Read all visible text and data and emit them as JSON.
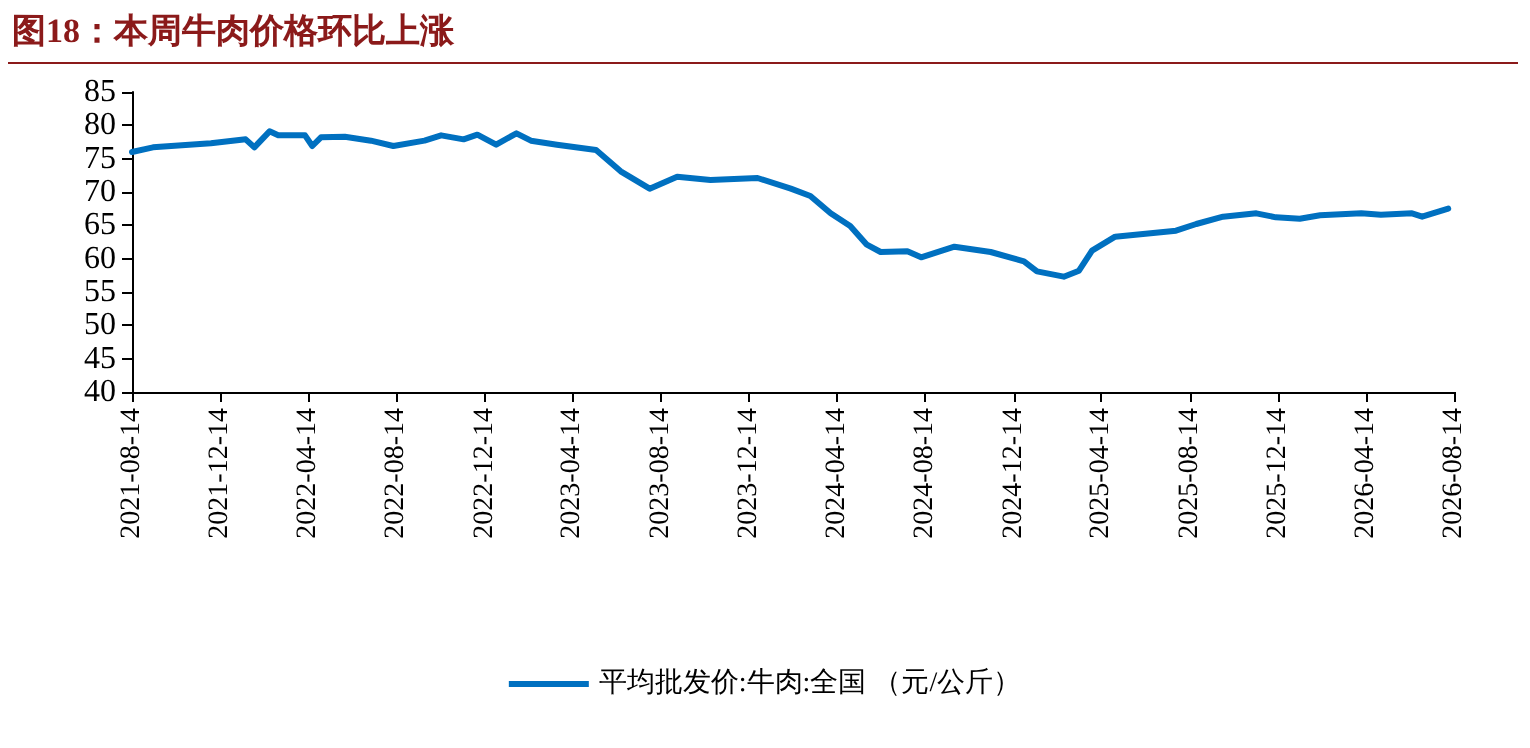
{
  "chart_data": {
    "type": "line",
    "title": "图18：本周牛肉价格环比上涨",
    "x": [
      "2021-08-14",
      "2021-09-12",
      "2021-12-01",
      "2022-01-18",
      "2022-01-30",
      "2022-02-20",
      "2022-03-04",
      "2022-04-10",
      "2022-04-20",
      "2022-05-02",
      "2022-06-04",
      "2022-07-10",
      "2022-08-10",
      "2022-09-22",
      "2022-10-15",
      "2022-11-15",
      "2022-12-04",
      "2022-12-30",
      "2023-01-27",
      "2023-02-16",
      "2023-03-24",
      "2023-05-17",
      "2023-06-20",
      "2023-07-30",
      "2023-09-06",
      "2023-10-22",
      "2023-12-26",
      "2024-02-10",
      "2024-03-08",
      "2024-04-05",
      "2024-05-02",
      "2024-05-25",
      "2024-06-13",
      "2024-07-20",
      "2024-08-08",
      "2024-09-23",
      "2024-11-12",
      "2024-12-28",
      "2025-01-15",
      "2025-02-21",
      "2025-03-14",
      "2025-04-01",
      "2025-05-03",
      "2025-06-28",
      "2025-07-26",
      "2025-08-23",
      "2025-09-29",
      "2025-11-14",
      "2025-12-11",
      "2026-01-13",
      "2026-02-10",
      "2026-04-08",
      "2026-05-05",
      "2026-06-17",
      "2026-07-01",
      "2026-08-06"
    ],
    "series": [
      {
        "name": "平均批发价:牛肉:全国 （元/公斤）",
        "color": "#0070c0",
        "values": [
          76.0,
          76.7,
          77.3,
          77.9,
          76.7,
          79.1,
          78.5,
          78.5,
          76.9,
          78.2,
          78.3,
          77.7,
          76.9,
          77.7,
          78.5,
          77.9,
          78.6,
          77.1,
          78.8,
          77.7,
          77.1,
          76.3,
          73.1,
          70.5,
          72.3,
          71.8,
          72.1,
          70.5,
          69.4,
          66.8,
          64.9,
          62.1,
          61.0,
          61.1,
          60.2,
          61.8,
          61.0,
          59.6,
          58.1,
          57.3,
          58.2,
          61.2,
          63.3,
          63.9,
          64.2,
          65.2,
          66.3,
          66.8,
          66.2,
          66.0,
          66.5,
          66.8,
          66.6,
          66.8,
          66.3,
          67.5
        ]
      }
    ],
    "xlim": [
      "2021-08-14",
      "2026-08-14"
    ],
    "xticks": [
      "2021-08-14",
      "2021-12-14",
      "2022-04-14",
      "2022-08-14",
      "2022-12-14",
      "2023-04-14",
      "2023-08-14",
      "2023-12-14",
      "2024-04-14",
      "2024-08-14",
      "2024-12-14",
      "2025-04-14",
      "2025-08-14",
      "2025-12-14",
      "2026-04-14",
      "2026-08-14"
    ],
    "ylim": [
      40,
      85
    ],
    "yticks": [
      40,
      45,
      50,
      55,
      60,
      65,
      70,
      75,
      80,
      85
    ],
    "grid": false,
    "legend": "bottom",
    "marker": "none",
    "line_style": "solid"
  }
}
